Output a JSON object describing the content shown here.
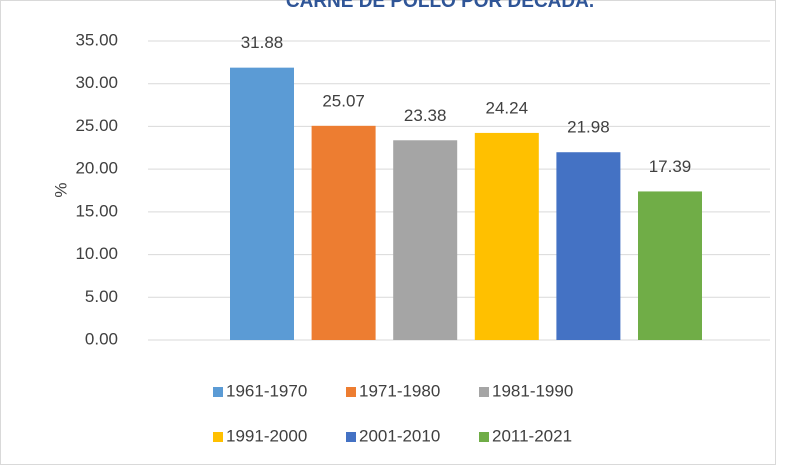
{
  "chart_data": {
    "type": "bar",
    "title": "CARNE DE POLLO POR DECADA.",
    "y_label": "%",
    "categories": [
      "1961-1970",
      "1971-1980",
      "1981-1990",
      "1991-2000",
      "2001-2010",
      "2011-2021"
    ],
    "values": [
      31.88,
      25.07,
      23.38,
      24.24,
      21.98,
      17.39
    ],
    "colors": [
      "#5b9bd5",
      "#ed7d31",
      "#a5a5a5",
      "#ffc000",
      "#4472c4",
      "#70ad47"
    ],
    "ylim": [
      0,
      35
    ],
    "yticks": [
      {
        "value": 0,
        "label": "0.00"
      },
      {
        "value": 5,
        "label": "5.00"
      },
      {
        "value": 10,
        "label": "10.00"
      },
      {
        "value": 15,
        "label": "15.00"
      },
      {
        "value": 20,
        "label": "20.00"
      },
      {
        "value": 25,
        "label": "25.00"
      },
      {
        "value": 30,
        "label": "30.00"
      },
      {
        "value": 35,
        "label": "35.00"
      }
    ],
    "grid": true
  }
}
